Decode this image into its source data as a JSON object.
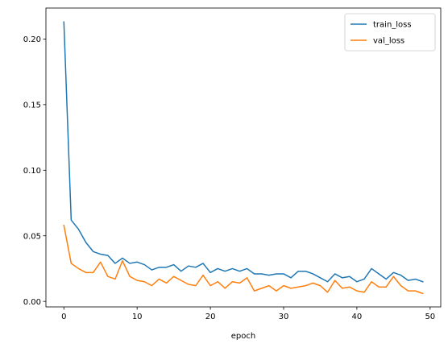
{
  "chart_data": {
    "type": "line",
    "title": "",
    "xlabel": "epoch",
    "ylabel": "",
    "xlim": [
      -2.45,
      51.45
    ],
    "ylim": [
      -0.0042,
      0.2236
    ],
    "xticks": [
      0,
      10,
      20,
      30,
      40,
      50
    ],
    "xtick_labels": [
      "0",
      "10",
      "20",
      "30",
      "40",
      "50"
    ],
    "yticks": [
      0.0,
      0.05,
      0.1,
      0.15,
      0.2
    ],
    "ytick_labels": [
      "0.00",
      "0.05",
      "0.10",
      "0.15",
      "0.20"
    ],
    "grid": false,
    "legend_position": "top-right",
    "x": [
      0,
      1,
      2,
      3,
      4,
      5,
      6,
      7,
      8,
      9,
      10,
      11,
      12,
      13,
      14,
      15,
      16,
      17,
      18,
      19,
      20,
      21,
      22,
      23,
      24,
      25,
      26,
      27,
      28,
      29,
      30,
      31,
      32,
      33,
      34,
      35,
      36,
      37,
      38,
      39,
      40,
      41,
      42,
      43,
      44,
      45,
      46,
      47,
      48,
      49
    ],
    "series": [
      {
        "name": "train_loss",
        "color": "#1f77b4",
        "values": [
          0.213,
          0.062,
          0.055,
          0.045,
          0.038,
          0.036,
          0.035,
          0.029,
          0.033,
          0.029,
          0.03,
          0.028,
          0.024,
          0.026,
          0.026,
          0.028,
          0.023,
          0.027,
          0.026,
          0.029,
          0.022,
          0.025,
          0.023,
          0.025,
          0.023,
          0.025,
          0.021,
          0.021,
          0.02,
          0.021,
          0.021,
          0.018,
          0.023,
          0.023,
          0.021,
          0.018,
          0.015,
          0.021,
          0.018,
          0.019,
          0.015,
          0.017,
          0.025,
          0.021,
          0.017,
          0.022,
          0.02,
          0.016,
          0.017,
          0.015
        ]
      },
      {
        "name": "val_loss",
        "color": "#ff7f0e",
        "values": [
          0.058,
          0.029,
          0.025,
          0.022,
          0.022,
          0.03,
          0.019,
          0.017,
          0.031,
          0.019,
          0.016,
          0.015,
          0.012,
          0.017,
          0.014,
          0.019,
          0.016,
          0.013,
          0.012,
          0.02,
          0.012,
          0.015,
          0.01,
          0.015,
          0.014,
          0.018,
          0.008,
          0.01,
          0.012,
          0.008,
          0.012,
          0.01,
          0.011,
          0.012,
          0.014,
          0.012,
          0.007,
          0.016,
          0.01,
          0.011,
          0.008,
          0.007,
          0.015,
          0.011,
          0.011,
          0.019,
          0.012,
          0.008,
          0.008,
          0.006
        ]
      }
    ]
  }
}
